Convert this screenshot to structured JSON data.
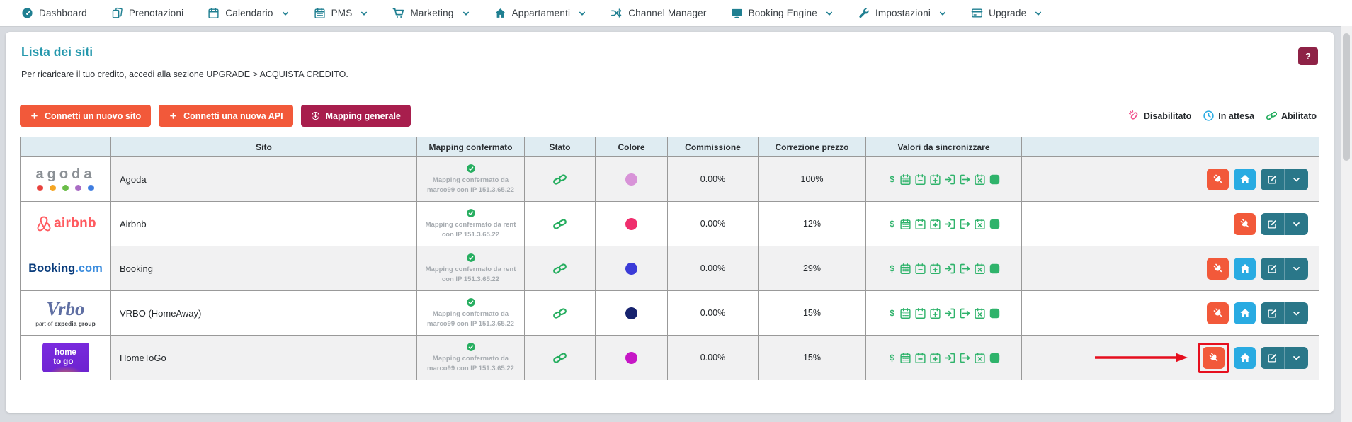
{
  "nav": {
    "items": [
      {
        "label": "Dashboard",
        "icon": "gauge",
        "chevron": false
      },
      {
        "label": "Prenotazioni",
        "icon": "copy",
        "chevron": false
      },
      {
        "label": "Calendario",
        "icon": "calendar",
        "chevron": true
      },
      {
        "label": "PMS",
        "icon": "calendar-grid",
        "chevron": true
      },
      {
        "label": "Marketing",
        "icon": "cart",
        "chevron": true
      },
      {
        "label": "Appartamenti",
        "icon": "home",
        "chevron": true
      },
      {
        "label": "Channel Manager",
        "icon": "shuffle",
        "chevron": false
      },
      {
        "label": "Booking Engine",
        "icon": "monitor",
        "chevron": true
      },
      {
        "label": "Impostazioni",
        "icon": "wrench",
        "chevron": true
      },
      {
        "label": "Upgrade",
        "icon": "card",
        "chevron": true
      }
    ]
  },
  "page": {
    "title": "Lista dei siti",
    "subtitle": "Per ricaricare il tuo credito, accedi alla sezione UPGRADE > ACQUISTA CREDITO.",
    "help_label": "?"
  },
  "toolbar": {
    "buttons": [
      {
        "label": "Connetti un nuovo sito",
        "icon": "plus",
        "color": "#f2593a"
      },
      {
        "label": "Connetti una nuova API",
        "icon": "plus",
        "color": "#f2593a"
      },
      {
        "label": "Mapping generale",
        "icon": "asterisk",
        "color": "#a81e4d"
      }
    ]
  },
  "legend": {
    "items": [
      {
        "label": "Disabilitato",
        "icon": "broken-link",
        "color": "#f0508c"
      },
      {
        "label": "In attesa",
        "icon": "clock",
        "color": "#29abe2"
      },
      {
        "label": "Abilitato",
        "icon": "link",
        "color": "#27ae60"
      }
    ]
  },
  "colors": {
    "nav_teal": "#1f7f91",
    "green": "#27ae60",
    "sync_green": "#2fb36b",
    "action_orange": "#f2593a",
    "action_blue": "#29abe2",
    "action_teal": "#2a7789",
    "annotation_red": "#e60f1e",
    "header_bg": "#dfecf2"
  },
  "logos": {
    "agoda": {
      "text": "agoda",
      "dot_colors": [
        "#e8413c",
        "#f5a623",
        "#6bbd49",
        "#a96cc4",
        "#3f7de0"
      ]
    },
    "airbnb": {
      "text": "airbnb"
    },
    "booking": {
      "text_main": "Booking",
      "text_suffix": ".com"
    },
    "vrbo": {
      "text": "Vrbo",
      "subtext_light": "part of",
      "subtext_bold": "expedia group"
    },
    "hometogo": {
      "line1": "home",
      "line2": "to go_"
    }
  },
  "table": {
    "headers": [
      "",
      "Sito",
      "Mapping confermato",
      "Stato",
      "Colore",
      "Commissione",
      "Correzione prezzo",
      "Valori da sincronizzare",
      ""
    ],
    "sync_icons": [
      "dollar",
      "calendar-grid",
      "calendar-minus",
      "calendar-plus",
      "sign-in",
      "sign-out",
      "calendar-x",
      "square"
    ],
    "rows": [
      {
        "logo": "agoda",
        "name": "Agoda",
        "mapping": "Mapping confermato da marco99 con IP 151.3.65.22",
        "status": "abilitato",
        "color": "#d893d8",
        "commission": "0.00%",
        "price_correction": "100%",
        "actions": [
          "plug",
          "home",
          "edit"
        ],
        "highlighted": false
      },
      {
        "logo": "airbnb",
        "name": "Airbnb",
        "mapping": "Mapping confermato da rent con IP 151.3.65.22",
        "status": "abilitato",
        "color": "#ef2e6d",
        "commission": "0.00%",
        "price_correction": "12%",
        "actions": [
          "plug",
          "edit"
        ],
        "highlighted": false
      },
      {
        "logo": "booking",
        "name": "Booking",
        "mapping": "Mapping confermato da rent con IP 151.3.65.22",
        "status": "abilitato",
        "color": "#3b3bd8",
        "commission": "0.00%",
        "price_correction": "29%",
        "actions": [
          "plug",
          "home",
          "edit"
        ],
        "highlighted": false
      },
      {
        "logo": "vrbo",
        "name": "VRBO (HomeAway)",
        "mapping": "Mapping confermato da marco99 con IP 151.3.65.22",
        "status": "abilitato",
        "color": "#16226e",
        "commission": "0.00%",
        "price_correction": "15%",
        "actions": [
          "plug",
          "home",
          "edit"
        ],
        "highlighted": false
      },
      {
        "logo": "hometogo",
        "name": "HomeToGo",
        "mapping": "Mapping confermato da marco99 con IP 151.3.65.22",
        "status": "abilitato",
        "color": "#c617c6",
        "commission": "0.00%",
        "price_correction": "15%",
        "actions": [
          "plug",
          "home",
          "edit"
        ],
        "highlighted": true
      }
    ]
  }
}
